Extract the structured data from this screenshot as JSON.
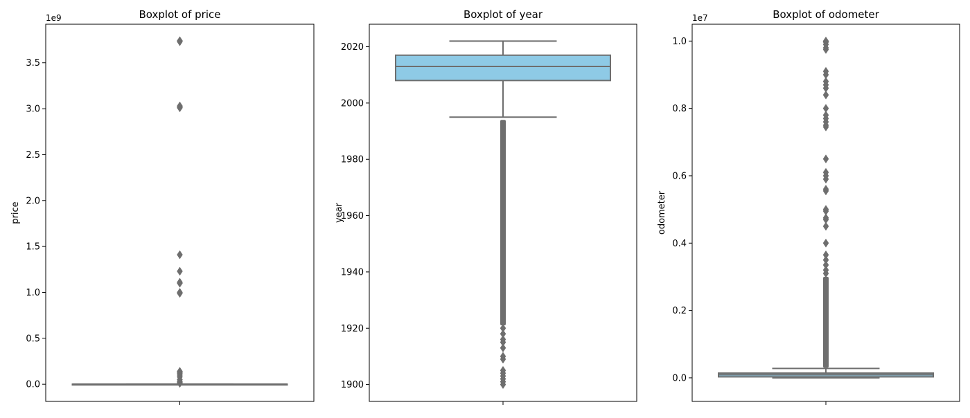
{
  "colors": {
    "box_fill": "#8ecae6",
    "box_edge": "#6e6e6e",
    "flier": "#6e6e6e",
    "axes_edge": "#000000"
  },
  "chart_data": [
    {
      "type": "boxplot",
      "title": "Boxplot of price",
      "ylabel": "price",
      "xlabel": "",
      "offset_label": "1e9",
      "scale": 1000000000,
      "ylim": [
        -0.187,
        3.92
      ],
      "yticks": [
        0.0,
        0.5,
        1.0,
        1.5,
        2.0,
        2.5,
        3.0,
        3.5
      ],
      "ytick_labels": [
        "0.0",
        "0.5",
        "1.0",
        "1.5",
        "2.0",
        "2.5",
        "3.0",
        "3.5"
      ],
      "xtick_labels": [
        ""
      ],
      "box": {
        "q1": 0.0,
        "median": 0.0,
        "q3": 0.0,
        "whisker_low": 0.0,
        "whisker_high": 0.0,
        "fill": false
      },
      "outliers": [
        3.74,
        3.73,
        3.03,
        3.02,
        3.01,
        1.41,
        1.23,
        1.11,
        1.1,
        1.0,
        0.99,
        0.14,
        0.13,
        0.12,
        0.1,
        0.08,
        0.05,
        0.03,
        0.02,
        0.01
      ],
      "grid": false
    },
    {
      "type": "boxplot",
      "title": "Boxplot of year",
      "ylabel": "year",
      "xlabel": "",
      "offset_label": "",
      "scale": 1,
      "ylim": [
        1894,
        2028
      ],
      "yticks": [
        1900,
        1920,
        1940,
        1960,
        1980,
        2000,
        2020
      ],
      "ytick_labels": [
        "1900",
        "1920",
        "1940",
        "1960",
        "1980",
        "2000",
        "2020"
      ],
      "xtick_labels": [
        ""
      ],
      "box": {
        "q1": 2008,
        "median": 2013,
        "q3": 2017,
        "whisker_low": 1995,
        "whisker_high": 2022,
        "fill": true
      },
      "outliers_range": [
        1921,
        1994
      ],
      "outliers": [
        1900,
        1901,
        1902,
        1903,
        1904,
        1905,
        1909,
        1910,
        1913,
        1915,
        1916,
        1918,
        1920
      ],
      "grid": false
    },
    {
      "type": "boxplot",
      "title": "Boxplot of odometer",
      "ylabel": "odometer",
      "xlabel": "",
      "offset_label": "1e7",
      "scale": 10000000,
      "ylim": [
        -0.07,
        1.05
      ],
      "yticks": [
        0.0,
        0.2,
        0.4,
        0.6,
        0.8,
        1.0
      ],
      "ytick_labels": [
        "0.0",
        "0.2",
        "0.4",
        "0.6",
        "0.8",
        "1.0"
      ],
      "xtick_labels": [
        ""
      ],
      "box": {
        "q1": 0.003,
        "median": 0.009,
        "q3": 0.014,
        "whisker_low": 0.0,
        "whisker_high": 0.028,
        "fill": true
      },
      "outliers_range": [
        0.03,
        0.3
      ],
      "outliers": [
        1.0,
        0.999,
        0.997,
        0.99,
        0.98,
        0.975,
        0.91,
        0.9,
        0.88,
        0.87,
        0.86,
        0.84,
        0.8,
        0.78,
        0.77,
        0.76,
        0.75,
        0.745,
        0.65,
        0.61,
        0.6,
        0.59,
        0.56,
        0.555,
        0.5,
        0.495,
        0.475,
        0.47,
        0.45,
        0.4,
        0.365,
        0.35,
        0.335,
        0.32,
        0.31
      ],
      "grid": false
    }
  ]
}
